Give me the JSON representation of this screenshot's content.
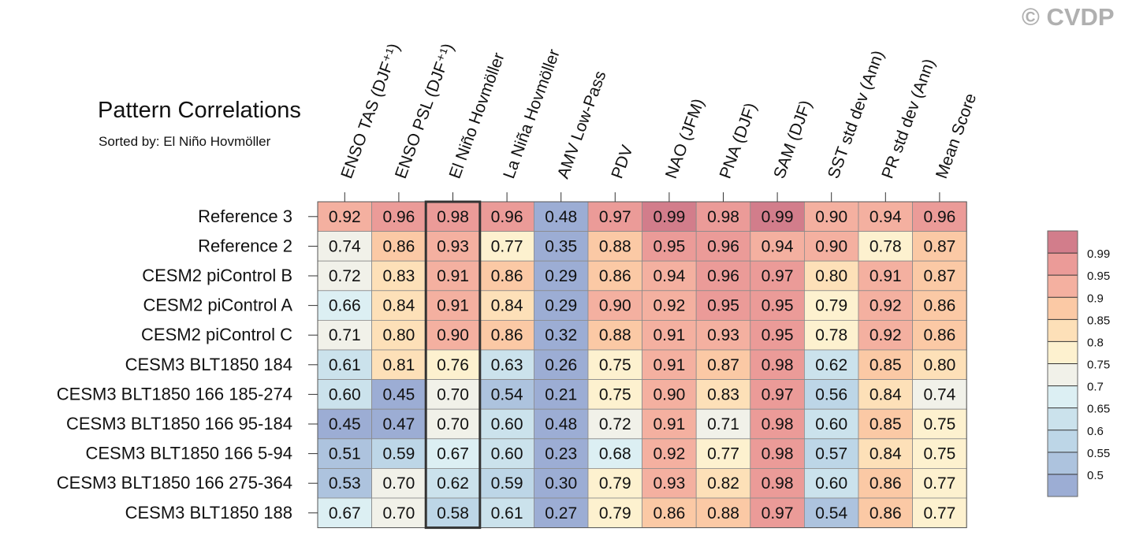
{
  "watermark": "© CVDP",
  "chart_data": {
    "type": "heatmap",
    "title": "Pattern Correlations",
    "subtitle": "Sorted by: El Niño Hovmöller",
    "columns": [
      "ENSO TAS (DJF⁺¹)",
      "ENSO PSL (DJF⁺¹)",
      "El Niño Hovmöller",
      "La Niña Hovmöller",
      "AMV Low-Pass",
      "PDV",
      "NAO (JFM)",
      "PNA (DJF)",
      "SAM (DJF)",
      "SST std dev (Ann)",
      "PR std dev (Ann)",
      "Mean Score"
    ],
    "rows": [
      "Reference 3",
      "Reference 2",
      "CESM2 piControl B",
      "CESM2 piControl A",
      "CESM2 piControl C",
      "CESM3 BLT1850 184",
      "CESM3 BLT1850 166 185-274",
      "CESM3 BLT1850 166 95-184",
      "CESM3 BLT1850 166 5-94",
      "CESM3 BLT1850 166 275-364",
      "CESM3 BLT1850 188"
    ],
    "values": [
      [
        "0.92",
        "0.96",
        "0.98",
        "0.96",
        "0.48",
        "0.97",
        "0.99",
        "0.98",
        "0.99",
        "0.90",
        "0.94",
        "0.96"
      ],
      [
        "0.74",
        "0.86",
        "0.93",
        "0.77",
        "0.35",
        "0.88",
        "0.95",
        "0.96",
        "0.94",
        "0.90",
        "0.78",
        "0.87"
      ],
      [
        "0.72",
        "0.83",
        "0.91",
        "0.86",
        "0.29",
        "0.86",
        "0.94",
        "0.96",
        "0.97",
        "0.80",
        "0.91",
        "0.87"
      ],
      [
        "0.66",
        "0.84",
        "0.91",
        "0.84",
        "0.29",
        "0.90",
        "0.92",
        "0.95",
        "0.95",
        "0.79",
        "0.92",
        "0.86"
      ],
      [
        "0.71",
        "0.80",
        "0.90",
        "0.86",
        "0.32",
        "0.88",
        "0.91",
        "0.93",
        "0.95",
        "0.78",
        "0.92",
        "0.86"
      ],
      [
        "0.61",
        "0.81",
        "0.76",
        "0.63",
        "0.26",
        "0.75",
        "0.91",
        "0.87",
        "0.98",
        "0.62",
        "0.85",
        "0.80"
      ],
      [
        "0.60",
        "0.45",
        "0.70",
        "0.54",
        "0.21",
        "0.75",
        "0.90",
        "0.83",
        "0.97",
        "0.56",
        "0.84",
        "0.74"
      ],
      [
        "0.45",
        "0.47",
        "0.70",
        "0.60",
        "0.48",
        "0.72",
        "0.91",
        "0.71",
        "0.98",
        "0.60",
        "0.85",
        "0.75"
      ],
      [
        "0.51",
        "0.59",
        "0.67",
        "0.60",
        "0.23",
        "0.68",
        "0.92",
        "0.77",
        "0.98",
        "0.57",
        "0.84",
        "0.75"
      ],
      [
        "0.53",
        "0.70",
        "0.62",
        "0.59",
        "0.30",
        "0.79",
        "0.93",
        "0.82",
        "0.98",
        "0.60",
        "0.86",
        "0.77"
      ],
      [
        "0.67",
        "0.70",
        "0.58",
        "0.61",
        "0.27",
        "0.79",
        "0.86",
        "0.88",
        "0.97",
        "0.54",
        "0.86",
        "0.77"
      ]
    ],
    "highlighted_column": "El Niño Hovmöller",
    "colorbar": {
      "boundaries": [
        "0.5",
        "0.55",
        "0.6",
        "0.65",
        "0.7",
        "0.75",
        "0.8",
        "0.85",
        "0.9",
        "0.95",
        "0.99"
      ],
      "colors": [
        "#9cadd4",
        "#adc3de",
        "#bdd6e7",
        "#cbe2ec",
        "#dceff3",
        "#f1f1e9",
        "#fdf1cf",
        "#fde0b8",
        "#fbc9a5",
        "#f4b0a0",
        "#eb9b98",
        "#d27d8b"
      ]
    },
    "legend": "right"
  }
}
